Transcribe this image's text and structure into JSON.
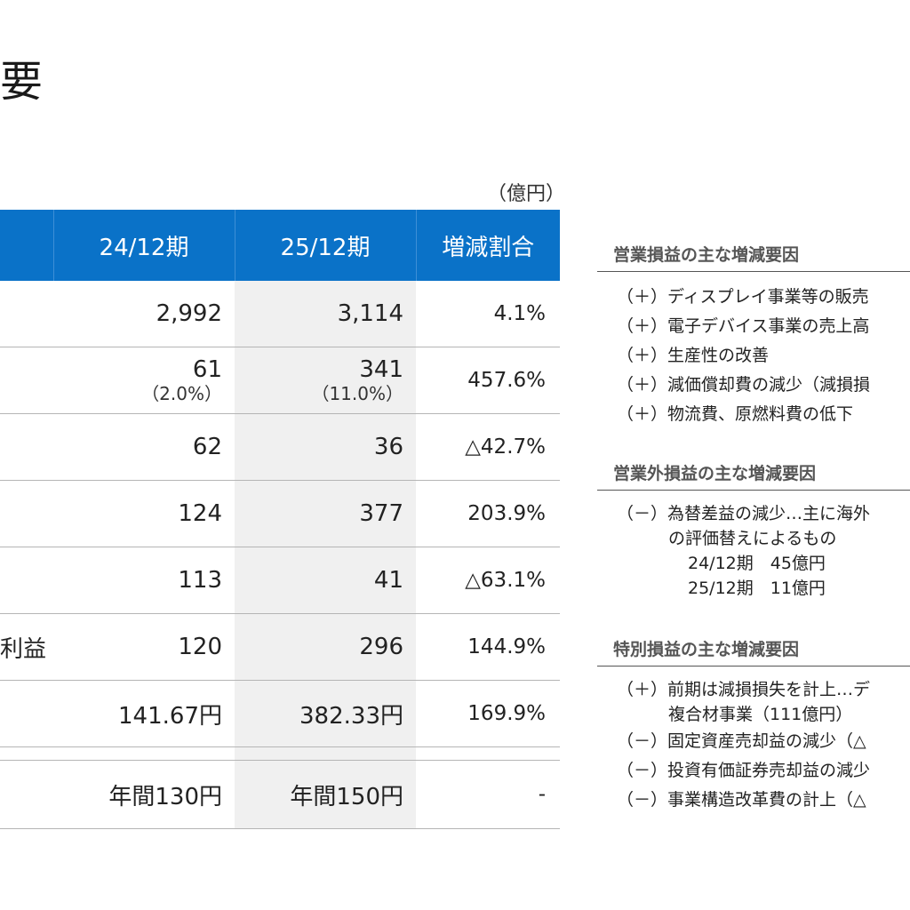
{
  "title": "要",
  "unit": "（億円）",
  "table": {
    "headers": [
      "",
      "24/12期",
      "25/12期",
      "増減割合"
    ],
    "rows": [
      {
        "label": "",
        "prev": "2,992",
        "cur": "3,114",
        "rate": "4.1%"
      },
      {
        "label": "",
        "prev": "61",
        "prev_sub": "（2.0%）",
        "cur": "341",
        "cur_sub": "（11.0%）",
        "rate": "457.6%"
      },
      {
        "label": "",
        "prev": "62",
        "cur": "36",
        "rate": "△42.7%"
      },
      {
        "label": "",
        "prev": "124",
        "cur": "377",
        "rate": "203.9%"
      },
      {
        "label": "",
        "prev": "113",
        "cur": "41",
        "rate": "△63.1%"
      },
      {
        "label": "利益",
        "prev": "120",
        "cur": "296",
        "rate": "144.9%"
      },
      {
        "label": "",
        "prev": "141.67円",
        "cur": "382.33円",
        "rate": "169.9%"
      }
    ],
    "dividend": {
      "label": "",
      "prev": "年間130円",
      "cur": "年間150円",
      "rate": "-"
    }
  },
  "operating": {
    "heading": "営業損益の主な増減要因",
    "items": [
      "（＋）ディスプレイ事業等の販売",
      "（＋）電子デバイス事業の売上高",
      "（＋）生産性の改善",
      "（＋）減価償却費の減少（減損損",
      "（＋）物流費、原燃料費の低下"
    ]
  },
  "non_operating": {
    "heading": "営業外損益の主な増減要因",
    "item": "（－）為替差益の減少…主に海外",
    "item_cont": "の評価替えによるもの",
    "sub1": "24/12期　45億円",
    "sub2": "25/12期　11億円"
  },
  "extraordinary": {
    "heading": "特別損益の主な増減要因",
    "item1": "（＋）前期は減損損失を計上…デ",
    "item1_cont": "複合材事業（111億円）",
    "item2": "（－）固定資産売却益の減少（△",
    "item3": "（－）投資有価証券売却益の減少",
    "item4": "（－）事業構造改革費の計上（△"
  }
}
